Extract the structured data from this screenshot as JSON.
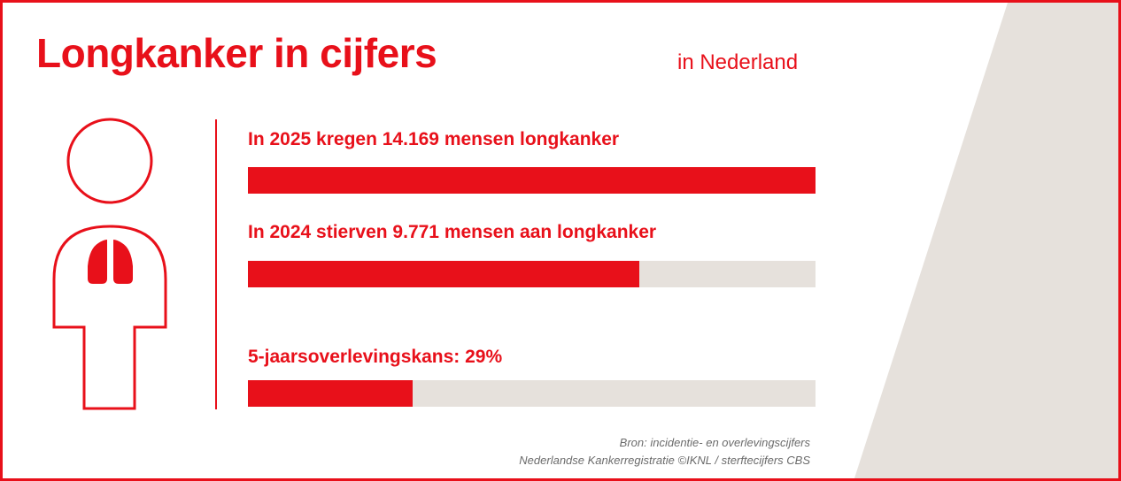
{
  "header": {
    "title": "Longkanker in cijfers",
    "subtitle": "in Nederland"
  },
  "stats": [
    {
      "label": "In 2025 kregen 14.169 mensen longkanker",
      "fill_fraction": 1.0
    },
    {
      "label": "In 2024 stierven 9.771 mensen aan longkanker",
      "fill_fraction": 0.69
    },
    {
      "label": "5-jaarsoverlevingskans: 29%",
      "fill_fraction": 0.29
    }
  ],
  "source": {
    "line1": "Bron: incidentie- en overlevingscijfers",
    "line2": "Nederlandse Kankerregistratie ©IKNL / sterftecijfers CBS"
  },
  "colors": {
    "accent": "#e8101a",
    "track": "#e6e1dc",
    "background_shape": "#e6e1dc",
    "source_text": "#6b6b6b"
  },
  "icons": {
    "figure": "person-with-lungs-icon"
  }
}
